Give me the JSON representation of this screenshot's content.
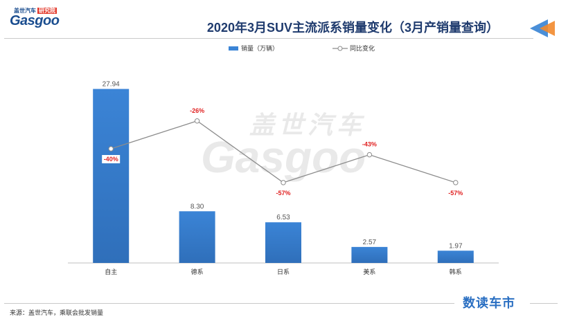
{
  "logo": {
    "cn": "盖世汽车",
    "tag": "研究院",
    "en": "Gasgoo"
  },
  "title": "2020年3月SUV主流派系销量变化（3月产销量查询）",
  "watermark": {
    "cn": "盖世汽车",
    "en": "Gasgoo"
  },
  "colors": {
    "bar": "#3b84d6",
    "line": "#8c8c8c",
    "yoy_label": "#e02020",
    "title": "#1f3b6e"
  },
  "chart_data": {
    "type": "bar",
    "categories": [
      "自主",
      "德系",
      "日系",
      "美系",
      "韩系"
    ],
    "series": [
      {
        "name": "销量（万辆）",
        "type": "bar",
        "values": [
          27.94,
          8.3,
          6.53,
          2.57,
          1.97
        ],
        "labels": [
          "27.94",
          "8.30",
          "6.53",
          "2.57",
          "1.97"
        ]
      },
      {
        "name": "同比变化",
        "type": "line",
        "values": [
          -40,
          -26,
          -57,
          -43,
          -57
        ],
        "labels": [
          "-40%",
          "-26%",
          "-57%",
          "-43%",
          "-57%"
        ]
      }
    ],
    "ylim": [
      0,
      30
    ],
    "y2lim": [
      -80,
      0
    ],
    "grid": false,
    "legend_position": "top-center"
  },
  "footer": {
    "source": "来源：盖世汽车，乘联会批发销量",
    "brand": "数读车市"
  }
}
